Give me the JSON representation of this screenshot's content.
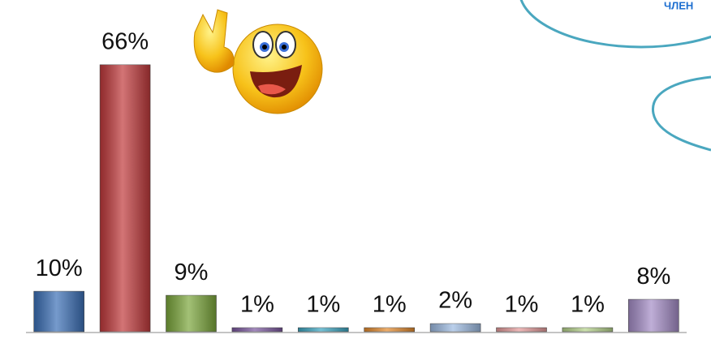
{
  "chart_data": {
    "type": "bar",
    "annotations": [
      "ЧЛЕН"
    ],
    "categories": [
      null,
      null,
      null,
      null,
      null,
      null,
      null,
      null,
      null,
      null
    ],
    "values": [
      10,
      66,
      9,
      1,
      1,
      1,
      2,
      1,
      1,
      8
    ],
    "value_labels": [
      "10%",
      "66%",
      "9%",
      "1%",
      "1%",
      "1%",
      "2%",
      "1%",
      "1%",
      "8%"
    ],
    "colors": [
      "#3b6fb6",
      "#c0393b",
      "#7ba63b",
      "#7b57a0",
      "#3aa6c2",
      "#e58a2c",
      "#9dbbe2",
      "#e79b9b",
      "#b6d48b",
      "#a48cc6"
    ],
    "ylim": [
      0,
      80
    ]
  }
}
